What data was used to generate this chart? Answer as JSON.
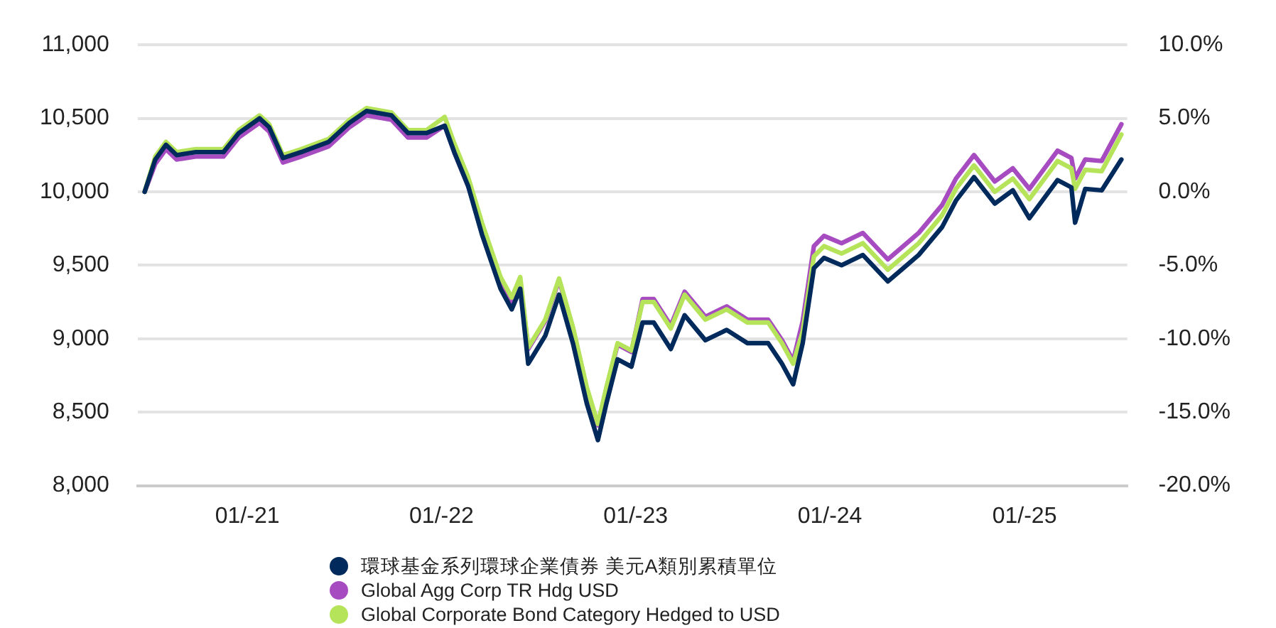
{
  "chart_data": {
    "type": "line",
    "x": [
      "2020-06-22",
      "2020-07-12",
      "2020-08-01",
      "2020-08-21",
      "2020-09-26",
      "2020-11-17",
      "2020-12-16",
      "2021-01-24",
      "2021-02-11",
      "2021-03-09",
      "2021-04-12",
      "2021-06-03",
      "2021-07-12",
      "2021-08-13",
      "2021-09-29",
      "2021-10-30",
      "2021-12-04",
      "2022-01-07",
      "2022-01-25",
      "2022-02-20",
      "2022-03-18",
      "2022-04-22",
      "2022-05-13",
      "2022-05-29",
      "2022-06-13",
      "2022-07-15",
      "2022-08-10",
      "2022-09-05",
      "2022-10-01",
      "2022-10-22",
      "2022-11-07",
      "2022-11-28",
      "2022-12-24",
      "2023-01-14",
      "2023-02-04",
      "2023-03-08",
      "2023-04-03",
      "2023-05-12",
      "2023-06-21",
      "2023-07-30",
      "2023-09-07",
      "2023-10-03",
      "2023-10-24",
      "2023-11-11",
      "2023-12-02",
      "2023-12-21",
      "2024-01-23",
      "2024-03-03",
      "2024-04-19",
      "2024-06-16",
      "2024-07-30",
      "2024-08-25",
      "2024-09-28",
      "2024-11-06",
      "2024-12-10",
      "2025-01-10",
      "2025-03-04",
      "2025-03-30",
      "2025-04-06",
      "2025-04-25",
      "2025-05-26",
      "2025-07-02"
    ],
    "series": [
      {
        "name": "環球基金系列環球企業債券 美元A類別累積單位",
        "color": "#002a5c",
        "values": [
          10000,
          10220,
          10320,
          10250,
          10270,
          10270,
          10400,
          10500,
          10440,
          10230,
          10270,
          10340,
          10470,
          10550,
          10520,
          10400,
          10400,
          10450,
          10270,
          10040,
          9710,
          9340,
          9200,
          9340,
          8830,
          9020,
          9300,
          8970,
          8560,
          8310,
          8560,
          8860,
          8810,
          9110,
          9110,
          8930,
          9160,
          8990,
          9060,
          8970,
          8970,
          8830,
          8690,
          8970,
          9480,
          9550,
          9500,
          9570,
          9390,
          9570,
          9760,
          9940,
          10100,
          9920,
          10010,
          9820,
          10080,
          10030,
          9790,
          10020,
          10010,
          10220
        ]
      },
      {
        "name": "Global Agg Corp TR Hdg USD",
        "color": "#a74cc0",
        "values": [
          10000,
          10190,
          10290,
          10220,
          10240,
          10240,
          10370,
          10470,
          10410,
          10200,
          10240,
          10310,
          10440,
          10520,
          10490,
          10370,
          10370,
          10450,
          10270,
          10040,
          9760,
          9390,
          9250,
          9390,
          8930,
          9120,
          9400,
          9070,
          8660,
          8410,
          8660,
          8960,
          8910,
          9270,
          9270,
          9090,
          9320,
          9150,
          9220,
          9130,
          9130,
          8990,
          8850,
          9120,
          9630,
          9700,
          9650,
          9720,
          9540,
          9720,
          9910,
          10090,
          10250,
          10070,
          10160,
          10020,
          10280,
          10230,
          10090,
          10220,
          10210,
          10460
        ]
      },
      {
        "name": "Global Corporate Bond Category Hedged to USD",
        "color": "#b5e35a",
        "values": [
          10000,
          10240,
          10340,
          10270,
          10290,
          10290,
          10420,
          10520,
          10460,
          10250,
          10290,
          10360,
          10490,
          10570,
          10540,
          10420,
          10420,
          10510,
          10330,
          10100,
          9790,
          9420,
          9280,
          9420,
          8940,
          9130,
          9410,
          9080,
          8670,
          8420,
          8670,
          8970,
          8920,
          9250,
          9250,
          9070,
          9300,
          9130,
          9200,
          9110,
          9110,
          8970,
          8830,
          9050,
          9560,
          9630,
          9580,
          9650,
          9470,
          9650,
          9840,
          10020,
          10180,
          10000,
          10090,
          9950,
          10210,
          10160,
          10020,
          10150,
          10140,
          10390
        ]
      }
    ],
    "xlim": [
      "2020-06-09",
      "2025-07-13"
    ],
    "xticks": [
      {
        "value": "2021-01-01",
        "label": "01/-21"
      },
      {
        "value": "2022-01-01",
        "label": "01/-22"
      },
      {
        "value": "2023-01-01",
        "label": "01/-23"
      },
      {
        "value": "2024-01-01",
        "label": "01/-24"
      },
      {
        "value": "2025-01-01",
        "label": "01/-25"
      }
    ],
    "ylim": [
      8000,
      11000
    ],
    "yticks": [
      {
        "value": 8000,
        "label": "8,000"
      },
      {
        "value": 8500,
        "label": "8,500"
      },
      {
        "value": 9000,
        "label": "9,000"
      },
      {
        "value": 9500,
        "label": "9,500"
      },
      {
        "value": 10000,
        "label": "10,000"
      },
      {
        "value": 10500,
        "label": "10,500"
      },
      {
        "value": 11000,
        "label": "11,000"
      }
    ],
    "y2lim": [
      -20,
      10
    ],
    "y2ticks": [
      {
        "value": -20,
        "label": "-20.0%"
      },
      {
        "value": -15,
        "label": "-15.0%"
      },
      {
        "value": -10,
        "label": "-10.0%"
      },
      {
        "value": -5,
        "label": "-5.0%"
      },
      {
        "value": 0,
        "label": "0.0%"
      },
      {
        "value": 5,
        "label": "5.0%"
      },
      {
        "value": 10,
        "label": "10.0%"
      }
    ],
    "grid": "y",
    "legend": "bottom",
    "marker": "none",
    "line_style": "solid"
  }
}
